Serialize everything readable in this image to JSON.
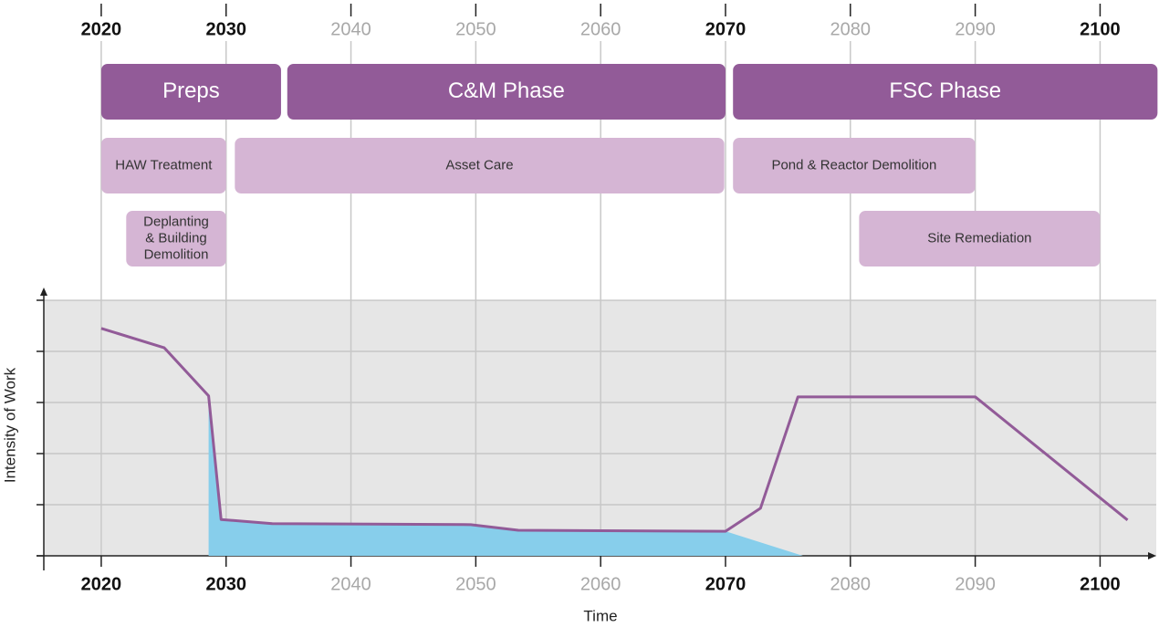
{
  "chart_data": {
    "type": "line",
    "xlabel": "Time",
    "ylabel": "Intensity of Work",
    "xlim": [
      2015.4,
      2104.5
    ],
    "ylim": [
      0,
      5
    ],
    "xticks": [
      2020,
      2030,
      2040,
      2050,
      2060,
      2070,
      2080,
      2090,
      2100
    ],
    "emphasized_ticks": [
      2020,
      2030,
      2070,
      2100
    ],
    "yticks": [
      0,
      1,
      2,
      3,
      4,
      5
    ],
    "grid": true,
    "series": [
      {
        "color": "#925b98",
        "x": [
          2020,
          2025.05,
          2028.6,
          2029.6,
          2033.7,
          2049.6,
          2053.4,
          2070,
          2072.8,
          2075.8,
          2090,
          2102.2
        ],
        "values": [
          4.45,
          4.07,
          3.13,
          0.71,
          0.63,
          0.61,
          0.5,
          0.48,
          0.93,
          3.11,
          3.11,
          0.7
        ]
      },
      {
        "color": "#87ceeb",
        "fill": true,
        "x": [
          2028.6,
          2029.6,
          2033.7,
          2049.6,
          2053.4,
          2070,
          2076.2
        ],
        "values": [
          3.13,
          0.71,
          0.63,
          0.61,
          0.5,
          0.48,
          0
        ]
      }
    ],
    "phases": [
      {
        "row": 0,
        "label_lines": [
          "Preps"
        ],
        "start": 2020,
        "end": 2034.4
      },
      {
        "row": 0,
        "label_lines": [
          "C&M Phase"
        ],
        "start": 2034.9,
        "end": 2070
      },
      {
        "row": 0,
        "label_lines": [
          "FSC Phase"
        ],
        "start": 2070.6,
        "end": 2104.6
      },
      {
        "row": 1,
        "label_lines": [
          "HAW Treatment"
        ],
        "start": 2020,
        "end": 2030
      },
      {
        "row": 1,
        "label_lines": [
          "Asset Care"
        ],
        "start": 2030.7,
        "end": 2069.9
      },
      {
        "row": 1,
        "label_lines": [
          "Pond & Reactor Demolition"
        ],
        "start": 2070.6,
        "end": 2090
      },
      {
        "row": 2,
        "label_lines": [
          "Deplanting",
          "& Building",
          "Demolition"
        ],
        "start": 2022,
        "end": 2030
      },
      {
        "row": 2,
        "label_lines": [
          "Site Remediation"
        ],
        "start": 2080.7,
        "end": 2100
      }
    ]
  }
}
